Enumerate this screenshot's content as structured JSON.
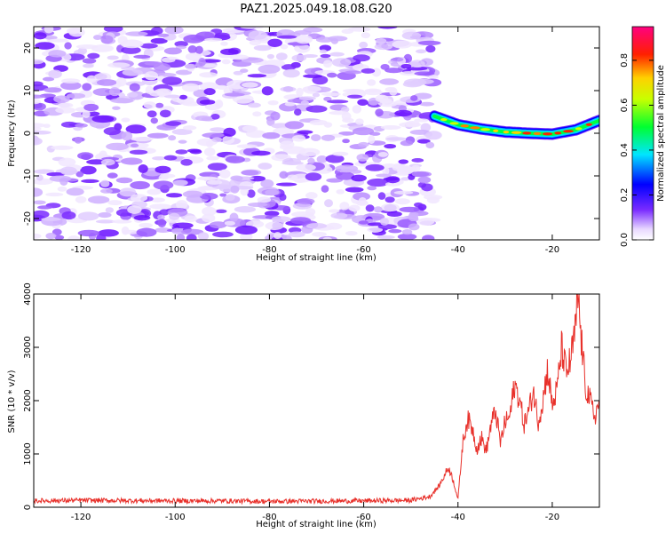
{
  "title": "PAZ1.2025.049.18.08.G20",
  "chart_data": [
    {
      "type": "heatmap",
      "xlabel": "Height of straight line (km)",
      "ylabel": "Frequency (Hz)",
      "xlim": [
        -130,
        -10
      ],
      "ylim": [
        -25,
        25
      ],
      "xticks": [
        -120,
        -100,
        -80,
        -60,
        -40,
        -20
      ],
      "yticks": [
        -20,
        -10,
        0,
        10,
        20
      ],
      "xtick_labels": [
        "-120",
        "-100",
        "-80",
        "-60",
        "-40",
        "-20"
      ],
      "ytick_labels": [
        "-20",
        "-10",
        "0",
        "10",
        "20"
      ],
      "grid": false,
      "colorbar": {
        "label": "Normalized spectral amplitude",
        "range": [
          0.0,
          0.95
        ],
        "ticks": [
          0.0,
          0.2,
          0.4,
          0.6,
          0.8
        ],
        "tick_labels": [
          "0.0",
          "0.2",
          "0.4",
          "0.6",
          "0.8"
        ],
        "colormap": "rainbow (magenta-blue-cyan-green-yellow-red-pink)"
      },
      "noise_region": {
        "x_range": [
          -130,
          -45
        ],
        "amplitude_range": [
          0.0,
          0.25
        ]
      },
      "signal_track": {
        "x": [
          -45,
          -40,
          -35,
          -30,
          -25,
          -20,
          -15,
          -10
        ],
        "freq": [
          4.0,
          2.0,
          1.0,
          0.3,
          0.0,
          -0.2,
          0.8,
          3.0
        ],
        "peak_amplitude": 0.9
      }
    },
    {
      "type": "line",
      "xlabel": "Height of straight line (km)",
      "ylabel": "SNR (10 * v/v)",
      "xlim": [
        -130,
        -10
      ],
      "ylim": [
        0,
        4000
      ],
      "xticks": [
        -120,
        -100,
        -80,
        -60,
        -40,
        -20
      ],
      "yticks": [
        0,
        1000,
        2000,
        3000,
        4000
      ],
      "xtick_labels": [
        "-120",
        "-100",
        "-80",
        "-60",
        "-40",
        "-20"
      ],
      "ytick_labels": [
        "0",
        "1000",
        "2000",
        "3000",
        "4000"
      ],
      "grid": false,
      "series": [
        {
          "color": "#e8302a",
          "x": [
            -130,
            -120,
            -110,
            -100,
            -90,
            -80,
            -70,
            -60,
            -50,
            -46,
            -44,
            -42,
            -41,
            -40,
            -39,
            -38,
            -37,
            -36,
            -35,
            -34,
            -33,
            -32,
            -31,
            -30,
            -29,
            -28,
            -27,
            -26,
            -25,
            -24,
            -23,
            -22,
            -21,
            -20,
            -19,
            -18,
            -17,
            -16,
            -15,
            -14.5,
            -14,
            -13,
            -12,
            -11,
            -10
          ],
          "values": [
            120,
            130,
            125,
            120,
            120,
            110,
            115,
            120,
            130,
            200,
            400,
            750,
            500,
            150,
            1200,
            1650,
            1500,
            1100,
            1300,
            1050,
            1550,
            1800,
            1200,
            1600,
            1700,
            2300,
            2050,
            1550,
            1800,
            2200,
            1600,
            2000,
            2600,
            1900,
            2200,
            3000,
            2500,
            2800,
            3400,
            4000,
            3300,
            2300,
            2000,
            1700,
            1950
          ]
        }
      ]
    }
  ],
  "colors": {
    "line": "#e8302a",
    "axis": "#000000",
    "background": "#ffffff"
  }
}
